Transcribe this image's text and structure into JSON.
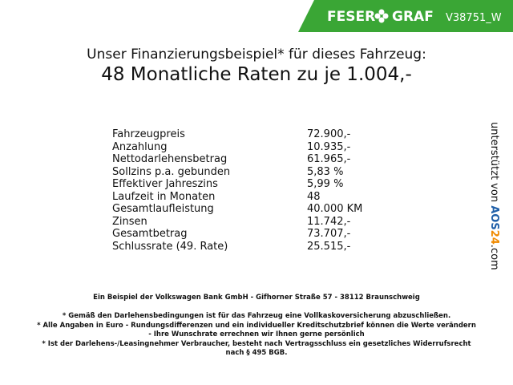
{
  "header": {
    "brand_left": "FESER",
    "brand_right": "GRAF",
    "code": "V38751_W"
  },
  "title": "Unser Finanzierungsbeispiel* für dieses Fahrzeug:",
  "subtitle": "48 Monatliche Raten zu je 1.004,-",
  "table": {
    "rows": [
      [
        "Fahrzeugpreis",
        "72.900,-"
      ],
      [
        "Anzahlung",
        "10.935,-"
      ],
      [
        "Nettodarlehensbetrag",
        "61.965,-"
      ],
      [
        "Sollzins p.a. gebunden",
        "5,83 %"
      ],
      [
        "Effektiver Jahreszins",
        "5,99 %"
      ],
      [
        "Laufzeit in Monaten",
        "48"
      ],
      [
        "Gesamtlaufleistung",
        "40.000 KM"
      ],
      [
        "Zinsen",
        "11.742,-"
      ],
      [
        "Gesamtbetrag",
        "73.707,-"
      ],
      [
        "Schlussrate (49. Rate)",
        "25.515,-"
      ]
    ]
  },
  "side": {
    "prefix": "unterstützt von",
    "brand_a": "AOS",
    "brand_b": "24",
    "suffix": ".com"
  },
  "bank": "Ein Beispiel der Volkswagen Bank GmbH - Gifhorner Straße 57 - 38112 Braunschweig",
  "footnotes": [
    "* Gemäß den Darlehensbedingungen ist für das Fahrzeug eine Vollkaskoversicherung abzuschließen.",
    "* Alle Angaben in Euro - Rundungsdifferenzen und ein individueller Kreditschutzbrief können die Werte verändern",
    "- Ihre Wunschrate errechnen wir Ihnen gerne persönlich",
    "* Ist der Darlehens-/Leasingnehmer Verbraucher, besteht nach Vertragsschluss ein gesetzliches Widerrufsrecht",
    "nach § 495 BGB."
  ]
}
